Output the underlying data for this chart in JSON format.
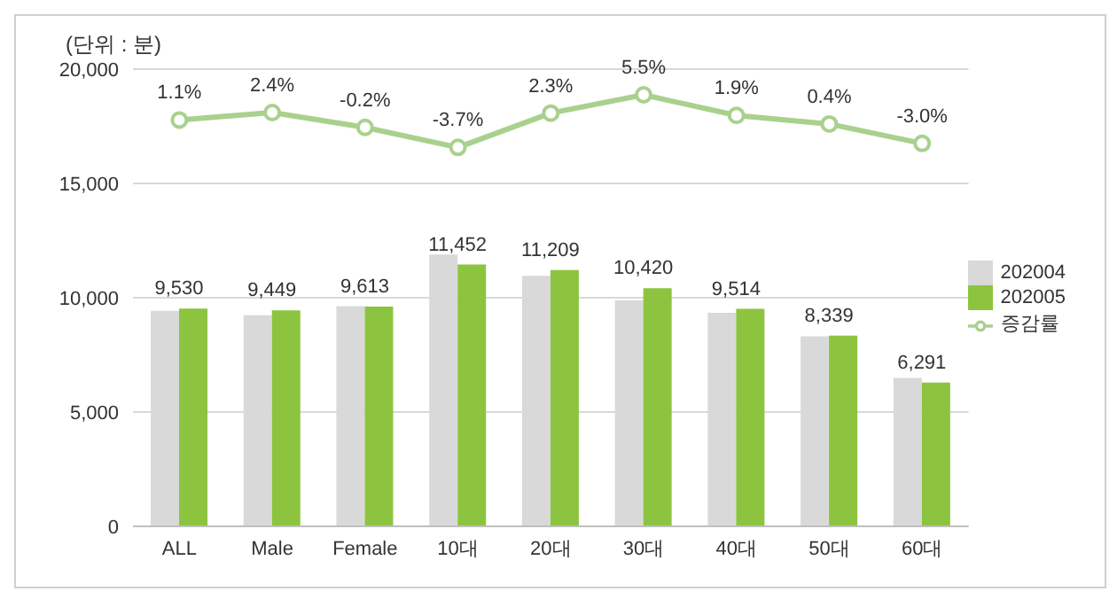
{
  "chart_data": {
    "type": "bar",
    "ylabel": "(단위 : 분)",
    "categories": [
      "ALL",
      "Male",
      "Female",
      "10대",
      "20대",
      "30대",
      "40대",
      "50대",
      "60대"
    ],
    "series": [
      {
        "name": "202004",
        "color": "#d9d9d9",
        "values": [
          9430,
          9230,
          9630,
          11890,
          10960,
          9880,
          9340,
          8310,
          6490
        ]
      },
      {
        "name": "202005",
        "color": "#8cc43f",
        "values": [
          9530,
          9449,
          9613,
          11452,
          11209,
          10420,
          9514,
          8339,
          6291
        ],
        "value_labels": [
          "9,530",
          "9,449",
          "9,613",
          "11,452",
          "11,209",
          "10,420",
          "9,514",
          "8,339",
          "6,291"
        ]
      },
      {
        "name": "증감률",
        "type": "line",
        "axis": "y2",
        "color": "#a9d18e",
        "marker": "circle",
        "values": [
          1.1,
          2.4,
          -0.2,
          -3.7,
          2.3,
          5.5,
          1.9,
          0.4,
          -3.0
        ],
        "value_labels": [
          "1.1%",
          "2.4%",
          "-0.2%",
          "-3.7%",
          "2.3%",
          "5.5%",
          "1.9%",
          "0.4%",
          "-3.0%"
        ]
      }
    ],
    "ylim": [
      0,
      20000
    ],
    "yticks": [
      0,
      {
        "value": 5000,
        "label": "5,000"
      },
      {
        "value": 10000,
        "label": "10,000"
      },
      {
        "value": 15000,
        "label": "15,000"
      },
      {
        "value": 20000,
        "label": "20,000"
      }
    ],
    "y2lim": [
      -70,
      10
    ],
    "grid": "y",
    "legend": "right"
  }
}
